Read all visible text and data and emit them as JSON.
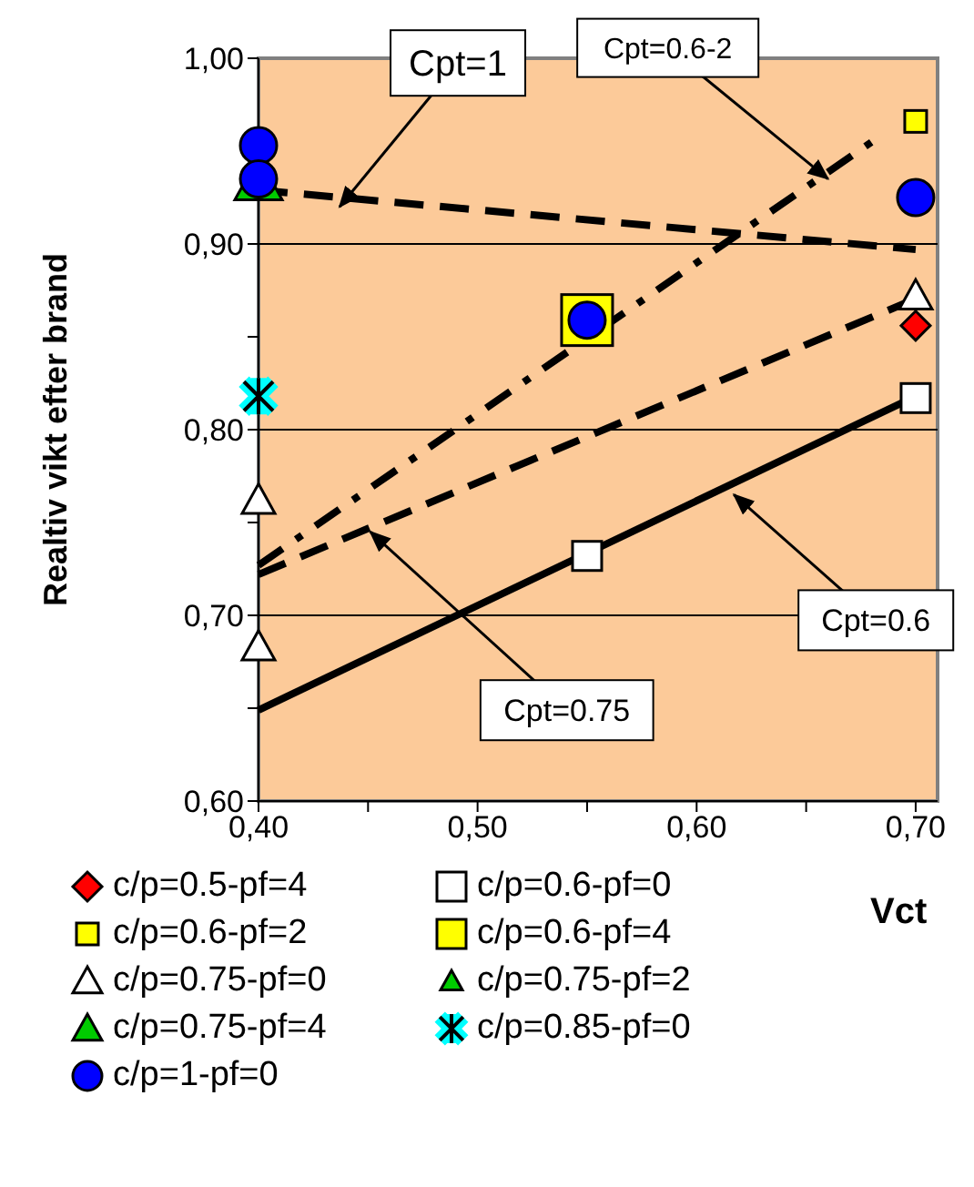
{
  "chart_data": {
    "type": "scatter",
    "xlabel": "Vct",
    "ylabel": "Realtiv vikt efter brand",
    "xlim": [
      0.4,
      0.71
    ],
    "ylim": [
      0.6,
      1.0
    ],
    "xticks": [
      {
        "value": 0.4,
        "label": "0,40"
      },
      {
        "value": 0.45,
        "label": null
      },
      {
        "value": 0.5,
        "label": "0,50"
      },
      {
        "value": 0.55,
        "label": null
      },
      {
        "value": 0.6,
        "label": "0,60"
      },
      {
        "value": 0.65,
        "label": null
      },
      {
        "value": 0.7,
        "label": "0,70"
      }
    ],
    "yticks": [
      {
        "value": 0.6,
        "label": "0,60"
      },
      {
        "value": 0.65,
        "label": null
      },
      {
        "value": 0.7,
        "label": "0,70"
      },
      {
        "value": 0.75,
        "label": null
      },
      {
        "value": 0.8,
        "label": "0,80"
      },
      {
        "value": 0.85,
        "label": null
      },
      {
        "value": 0.9,
        "label": "0,90"
      },
      {
        "value": 0.95,
        "label": null
      },
      {
        "value": 1.0,
        "label": "1,00"
      }
    ],
    "grid": "y",
    "legend": "bottom",
    "series": [
      {
        "type": "line",
        "color": "#000000",
        "line_style": "dashed",
        "x": [
          0.4,
          0.7
        ],
        "values": [
          0.929,
          0.897
        ]
      },
      {
        "type": "line",
        "color": "#000000",
        "line_style": "dashdot",
        "x": [
          0.4,
          0.68
        ],
        "values": [
          0.727,
          0.955
        ]
      },
      {
        "type": "line",
        "color": "#000000",
        "line_style": "dashed",
        "x": [
          0.4,
          0.695
        ],
        "values": [
          0.722,
          0.868
        ]
      },
      {
        "type": "line",
        "color": "#000000",
        "line_style": "solid",
        "x": [
          0.4,
          0.7
        ],
        "values": [
          0.649,
          0.818
        ]
      },
      {
        "name": "c/p=0.5-pf=4",
        "color": "#ff0000",
        "marker": "diamond",
        "x": [
          0.7
        ],
        "values": [
          0.856
        ]
      },
      {
        "name": "c/p=0.6-pf=0",
        "color": "#ffffff",
        "marker": "square",
        "x": [
          0.55,
          0.7
        ],
        "values": [
          0.732,
          0.817
        ]
      },
      {
        "name": "c/p=0.6-pf=2",
        "color": "#ffff00",
        "marker": "square",
        "x": [
          0.7
        ],
        "values": [
          0.966
        ]
      },
      {
        "name": "c/p=0.6-pf=4",
        "color": "#ffff00",
        "marker": "square",
        "x": [
          0.55
        ],
        "values": [
          0.859
        ]
      },
      {
        "name": "c/p=0.75-pf=0",
        "color": "#ffffff",
        "marker": "triangle",
        "x": [
          0.4,
          0.4,
          0.7
        ],
        "values": [
          0.762,
          0.683,
          0.872
        ]
      },
      {
        "name": "c/p=0.75-pf=2",
        "color": "#00cc00",
        "marker": "triangle"
      },
      {
        "name": "c/p=0.75-pf=4",
        "color": "#00cc00",
        "marker": "triangle",
        "x": [
          0.4
        ],
        "values": [
          0.934
        ]
      },
      {
        "name": "c/p=0.85-pf=0",
        "color": "#00ffff",
        "marker": "cross",
        "x": [
          0.4
        ],
        "values": [
          0.818
        ]
      },
      {
        "name": "c/p=1-pf=0",
        "color": "#0000ff",
        "marker": "circle",
        "x": [
          0.4,
          0.4,
          0.55,
          0.7
        ],
        "values": [
          0.953,
          0.935,
          0.859,
          0.925
        ]
      }
    ],
    "annotations": [
      {
        "text": "Cpt=1",
        "x": 0.437,
        "y": 0.92
      },
      {
        "text": "Cpt=0.6-2",
        "x": 0.66,
        "y": 0.935
      },
      {
        "text": "Cpt=0.75",
        "x": 0.451,
        "y": 0.745
      },
      {
        "text": "Cpt=0.6",
        "x": 0.617,
        "y": 0.765
      }
    ]
  }
}
